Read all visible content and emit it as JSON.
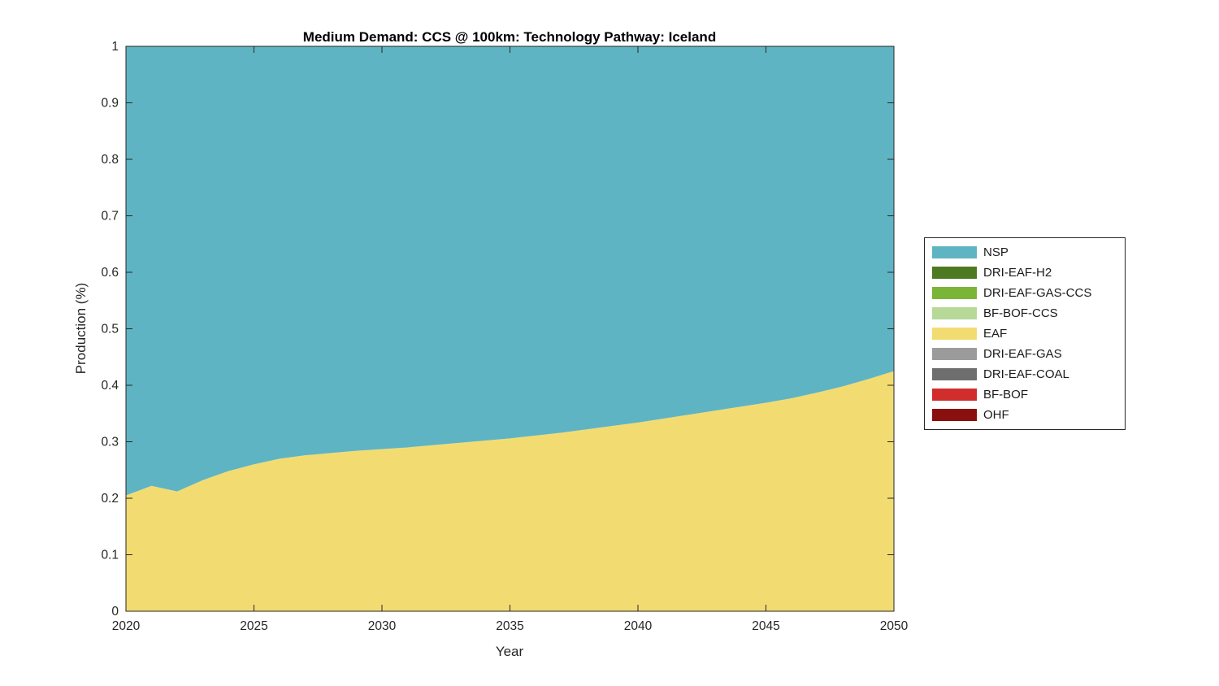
{
  "figure": {
    "title": "Medium Demand: CCS @ 100km: Technology Pathway: Iceland",
    "xlabel": "Year",
    "ylabel": "Production (%)",
    "background": "#ffffff",
    "axis_color": "#262626"
  },
  "chart_data": {
    "type": "area",
    "stacked": true,
    "title": "Medium Demand: CCS @ 100km: Technology Pathway: Iceland",
    "xlabel": "Year",
    "ylabel": "Production (%)",
    "xlim": [
      2020,
      2050
    ],
    "ylim": [
      0,
      1
    ],
    "xticks": [
      2020,
      2025,
      2030,
      2035,
      2040,
      2045,
      2050
    ],
    "yticks": [
      0,
      0.1,
      0.2,
      0.3,
      0.4,
      0.5,
      0.6,
      0.7,
      0.8,
      0.9,
      1
    ],
    "grid": false,
    "legend_position": "right-outside",
    "x": [
      2020,
      2021,
      2022,
      2023,
      2024,
      2025,
      2026,
      2027,
      2028,
      2029,
      2030,
      2031,
      2032,
      2033,
      2034,
      2035,
      2036,
      2037,
      2038,
      2039,
      2040,
      2041,
      2042,
      2043,
      2044,
      2045,
      2046,
      2047,
      2048,
      2049,
      2050
    ],
    "series": [
      {
        "name": "NSP",
        "color": "#5fb4c3",
        "values": [
          0.795,
          0.778,
          0.788,
          0.768,
          0.752,
          0.74,
          0.73,
          0.724,
          0.72,
          0.716,
          0.713,
          0.71,
          0.706,
          0.702,
          0.698,
          0.694,
          0.689,
          0.684,
          0.678,
          0.672,
          0.666,
          0.659,
          0.652,
          0.645,
          0.638,
          0.631,
          0.623,
          0.613,
          0.602,
          0.589,
          0.575
        ]
      },
      {
        "name": "DRI-EAF-H2",
        "color": "#4d7a20",
        "values": [
          0,
          0,
          0,
          0,
          0,
          0,
          0,
          0,
          0,
          0,
          0,
          0,
          0,
          0,
          0,
          0,
          0,
          0,
          0,
          0,
          0,
          0,
          0,
          0,
          0,
          0,
          0,
          0,
          0,
          0,
          0
        ]
      },
      {
        "name": "DRI-EAF-GAS-CCS",
        "color": "#7ab537",
        "values": [
          0,
          0,
          0,
          0,
          0,
          0,
          0,
          0,
          0,
          0,
          0,
          0,
          0,
          0,
          0,
          0,
          0,
          0,
          0,
          0,
          0,
          0,
          0,
          0,
          0,
          0,
          0,
          0,
          0,
          0,
          0
        ]
      },
      {
        "name": "BF-BOF-CCS",
        "color": "#b6d998",
        "values": [
          0,
          0,
          0,
          0,
          0,
          0,
          0,
          0,
          0,
          0,
          0,
          0,
          0,
          0,
          0,
          0,
          0,
          0,
          0,
          0,
          0,
          0,
          0,
          0,
          0,
          0,
          0,
          0,
          0,
          0,
          0
        ]
      },
      {
        "name": "EAF",
        "color": "#f2dc71",
        "values": [
          0.205,
          0.222,
          0.212,
          0.232,
          0.248,
          0.26,
          0.27,
          0.276,
          0.28,
          0.284,
          0.287,
          0.29,
          0.294,
          0.298,
          0.302,
          0.306,
          0.311,
          0.316,
          0.322,
          0.328,
          0.334,
          0.341,
          0.348,
          0.355,
          0.362,
          0.369,
          0.377,
          0.387,
          0.398,
          0.411,
          0.425
        ]
      },
      {
        "name": "DRI-EAF-GAS",
        "color": "#9b9b9b",
        "values": [
          0,
          0,
          0,
          0,
          0,
          0,
          0,
          0,
          0,
          0,
          0,
          0,
          0,
          0,
          0,
          0,
          0,
          0,
          0,
          0,
          0,
          0,
          0,
          0,
          0,
          0,
          0,
          0,
          0,
          0,
          0
        ]
      },
      {
        "name": "DRI-EAF-COAL",
        "color": "#6e6e6e",
        "values": [
          0,
          0,
          0,
          0,
          0,
          0,
          0,
          0,
          0,
          0,
          0,
          0,
          0,
          0,
          0,
          0,
          0,
          0,
          0,
          0,
          0,
          0,
          0,
          0,
          0,
          0,
          0,
          0,
          0,
          0,
          0
        ]
      },
      {
        "name": "BF-BOF",
        "color": "#d22d2d",
        "values": [
          0,
          0,
          0,
          0,
          0,
          0,
          0,
          0,
          0,
          0,
          0,
          0,
          0,
          0,
          0,
          0,
          0,
          0,
          0,
          0,
          0,
          0,
          0,
          0,
          0,
          0,
          0,
          0,
          0,
          0,
          0
        ]
      },
      {
        "name": "OHF",
        "color": "#8a0f0f",
        "values": [
          0,
          0,
          0,
          0,
          0,
          0,
          0,
          0,
          0,
          0,
          0,
          0,
          0,
          0,
          0,
          0,
          0,
          0,
          0,
          0,
          0,
          0,
          0,
          0,
          0,
          0,
          0,
          0,
          0,
          0,
          0
        ]
      }
    ],
    "stack_order_bottom_to_top": [
      "OHF",
      "BF-BOF",
      "DRI-EAF-COAL",
      "DRI-EAF-GAS",
      "EAF",
      "BF-BOF-CCS",
      "DRI-EAF-GAS-CCS",
      "DRI-EAF-H2",
      "NSP"
    ]
  }
}
